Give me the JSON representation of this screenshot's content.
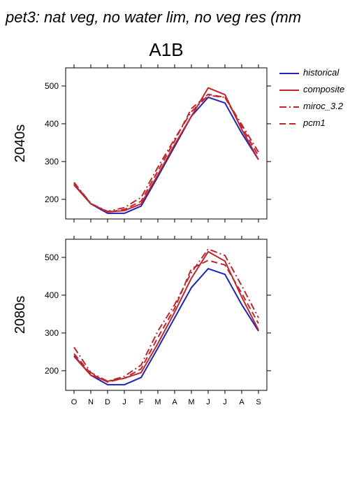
{
  "page": {
    "title": "pet3: nat veg, no water lim, no veg res (mm",
    "scenario": "A1B"
  },
  "legend": {
    "items": [
      {
        "name": "historical",
        "color": "#1f24b8",
        "dash": "solid"
      },
      {
        "name": "composite",
        "color": "#c0262c",
        "dash": "solid"
      },
      {
        "name": "miroc_3.2",
        "color": "#c0262c",
        "dash": "dashdot"
      },
      {
        "name": "pcm1",
        "color": "#c0262c",
        "dash": "dashed"
      }
    ]
  },
  "chart_data": [
    {
      "type": "line",
      "ylabel": "2040s",
      "categories": [
        "O",
        "N",
        "D",
        "J",
        "F",
        "M",
        "A",
        "M",
        "J",
        "J",
        "A",
        "S"
      ],
      "yticks": [
        200,
        300,
        400,
        500
      ],
      "ylim": [
        148,
        548
      ],
      "series": [
        {
          "name": "historical",
          "color": "#1f24b8",
          "dash": "solid",
          "values": [
            240,
            188,
            163,
            163,
            182,
            260,
            340,
            420,
            470,
            455,
            375,
            305
          ]
        },
        {
          "name": "composite",
          "color": "#c0262c",
          "dash": "solid",
          "values": [
            238,
            188,
            167,
            170,
            188,
            265,
            345,
            420,
            495,
            477,
            385,
            305
          ]
        },
        {
          "name": "miroc_3.2",
          "color": "#c0262c",
          "dash": "dashdot",
          "values": [
            245,
            189,
            168,
            178,
            205,
            285,
            360,
            432,
            475,
            470,
            398,
            325
          ]
        },
        {
          "name": "pcm1",
          "color": "#c0262c",
          "dash": "dashed",
          "values": [
            242,
            189,
            166,
            173,
            195,
            275,
            355,
            440,
            478,
            470,
            392,
            315
          ]
        }
      ]
    },
    {
      "type": "line",
      "ylabel": "2080s",
      "categories": [
        "O",
        "N",
        "D",
        "J",
        "F",
        "M",
        "A",
        "M",
        "J",
        "J",
        "A",
        "S"
      ],
      "yticks": [
        200,
        300,
        400,
        500
      ],
      "ylim": [
        148,
        548
      ],
      "series": [
        {
          "name": "historical",
          "color": "#1f24b8",
          "dash": "solid",
          "values": [
            240,
            188,
            163,
            163,
            182,
            260,
            340,
            420,
            470,
            455,
            375,
            305
          ]
        },
        {
          "name": "composite",
          "color": "#c0262c",
          "dash": "solid",
          "values": [
            238,
            188,
            172,
            180,
            195,
            272,
            355,
            445,
            515,
            490,
            395,
            308
          ]
        },
        {
          "name": "miroc_3.2",
          "color": "#c0262c",
          "dash": "dashdot",
          "values": [
            262,
            195,
            172,
            185,
            215,
            305,
            375,
            460,
            522,
            505,
            425,
            340
          ]
        },
        {
          "name": "pcm1",
          "color": "#c0262c",
          "dash": "dashed",
          "values": [
            245,
            192,
            170,
            180,
            205,
            288,
            365,
            470,
            492,
            480,
            405,
            325
          ]
        }
      ]
    }
  ]
}
